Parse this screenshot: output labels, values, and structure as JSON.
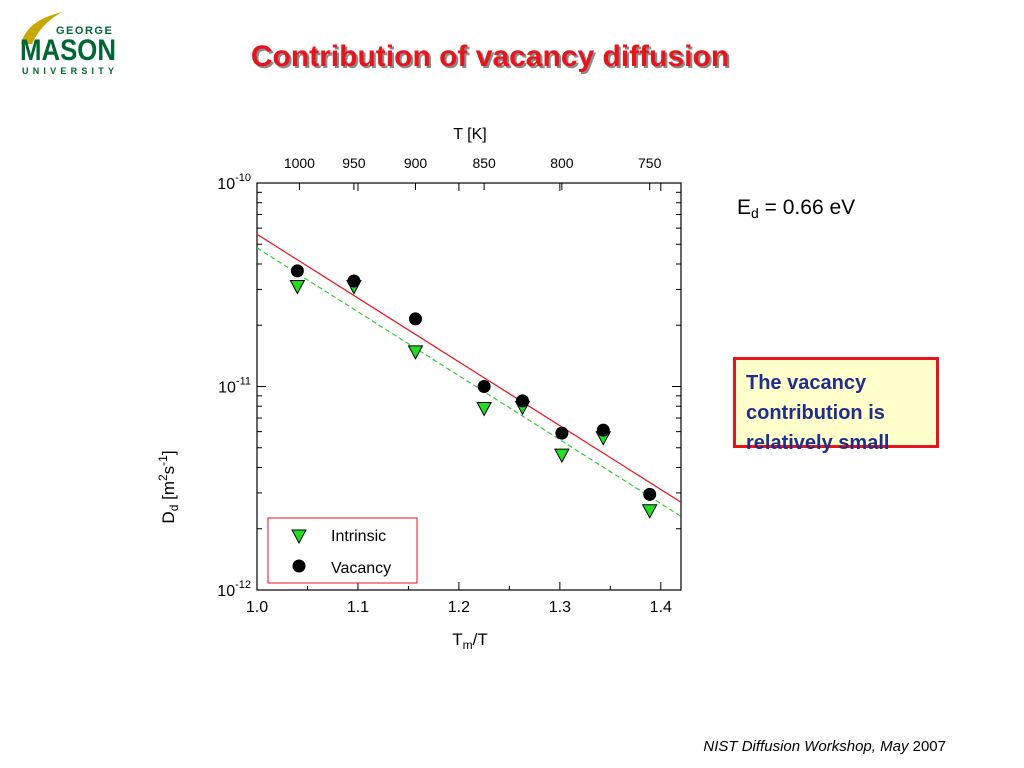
{
  "logo": {
    "line1": "GEORGE",
    "line2": "MASON",
    "line3": "UNIVERSITY"
  },
  "slide": {
    "title": "Contribution of vacancy diffusion",
    "energy_label": "E",
    "energy_sub": "d",
    "energy_value": " = 0.66 eV",
    "callout": "The vacancy contribution is relatively small",
    "footer_italic": "NIST Diffusion Workshop, May",
    "footer_year": " 2007"
  },
  "colors": {
    "title": "#e8141c",
    "callout_text": "#1f2d8c",
    "callout_bg": "#ffffcc",
    "callout_border": "#e8141c",
    "logo_green": "#006633",
    "logo_gold": "#c8a800",
    "intrinsic_fill": "#22dd22",
    "fit_vacancy": "#e8141c",
    "fit_intrinsic": "#33cc33"
  },
  "chart_data": {
    "type": "scatter",
    "xlabel_main": "T",
    "xlabel_sub": "m",
    "xlabel_tail": "/T",
    "ylabel_main": "D",
    "ylabel_sub": "d",
    "ylabel_unit1": " [m",
    "ylabel_unit1_sup": "2",
    "ylabel_unit2": "s",
    "ylabel_unit2_sup": "-1",
    "ylabel_unit3": "]",
    "top_axis_label": "T [K]",
    "xlim": [
      1.0,
      1.42
    ],
    "ylim": [
      1e-12,
      1e-10
    ],
    "y_scale": "log",
    "x_ticks": [
      "1.0",
      "1.1",
      "1.2",
      "1.3",
      "1.4"
    ],
    "y_ticks": [
      {
        "base": "10",
        "exp": "-10",
        "value": 1e-10
      },
      {
        "base": "10",
        "exp": "-11",
        "value": 1e-11
      },
      {
        "base": "10",
        "exp": "-12",
        "value": 1e-12
      }
    ],
    "top_ticks": [
      {
        "label": "1000",
        "x": 1.042
      },
      {
        "label": "950",
        "x": 1.096
      },
      {
        "label": "900",
        "x": 1.157
      },
      {
        "label": "850",
        "x": 1.225
      },
      {
        "label": "800",
        "x": 1.302
      },
      {
        "label": "750",
        "x": 1.389
      }
    ],
    "series": [
      {
        "name": "Intrinsic",
        "marker": "triangle-down",
        "color": "#22dd22",
        "x": [
          1.04,
          1.096,
          1.157,
          1.225,
          1.263,
          1.302,
          1.343,
          1.389
        ],
        "y": [
          3.1e-11,
          3.1e-11,
          1.48e-11,
          7.8e-12,
          7.9e-12,
          4.6e-12,
          5.6e-12,
          2.45e-12
        ]
      },
      {
        "name": "Vacancy",
        "marker": "circle",
        "color": "#000000",
        "x": [
          1.04,
          1.096,
          1.157,
          1.225,
          1.263,
          1.302,
          1.343,
          1.389
        ],
        "y": [
          3.7e-11,
          3.3e-11,
          2.15e-11,
          1e-11,
          8.5e-12,
          5.9e-12,
          6.1e-12,
          2.95e-12
        ]
      }
    ],
    "fits": [
      {
        "series": "Vacancy",
        "style": "solid",
        "color": "#e8141c",
        "x": [
          1.0,
          1.42
        ],
        "y": [
          5.6e-11,
          2.7e-12
        ]
      },
      {
        "series": "Intrinsic",
        "style": "dashed",
        "color": "#33cc33",
        "x": [
          1.0,
          1.42
        ],
        "y": [
          4.8e-11,
          2.3e-12
        ]
      }
    ],
    "legend": {
      "position": "bottom-left",
      "entries": [
        "Intrinsic",
        "Vacancy"
      ]
    },
    "grid": false
  }
}
